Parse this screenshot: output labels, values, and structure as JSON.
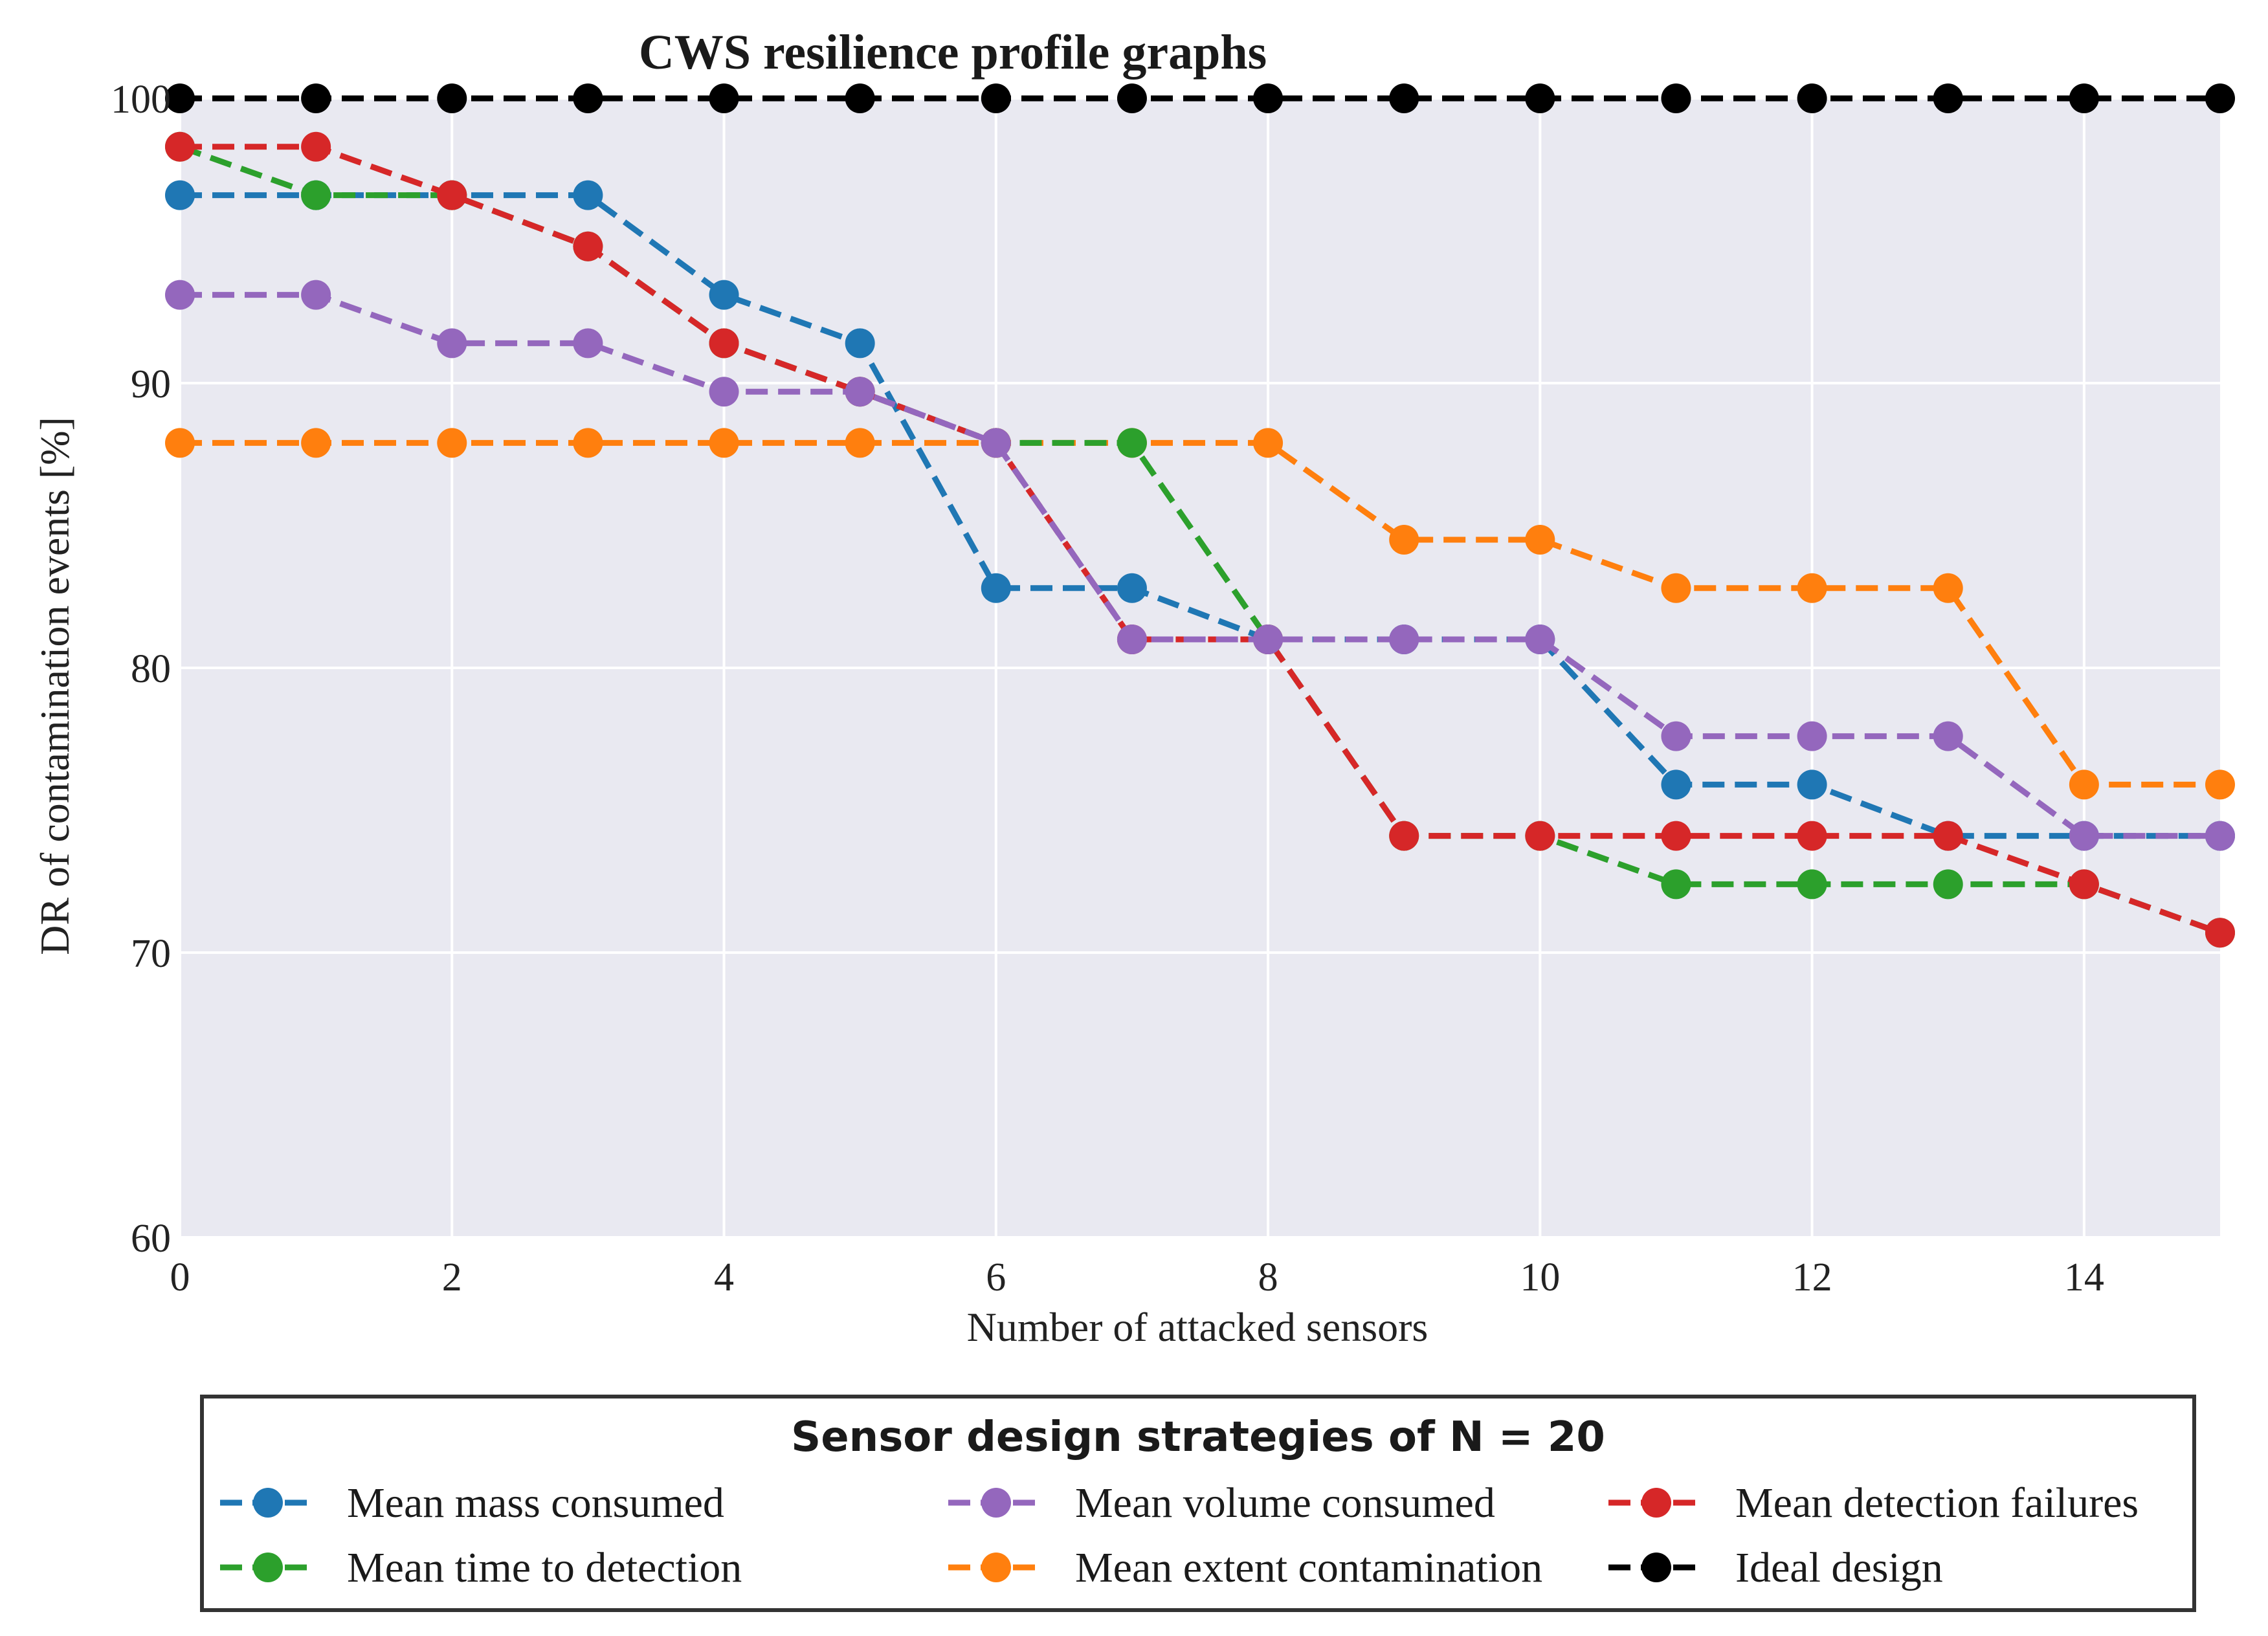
{
  "chart_data": {
    "type": "line",
    "title": "CWS resilience profile graphs",
    "xlabel": "Number of attacked sensors",
    "ylabel": "DR of contamination events [%]",
    "xlim": [
      0,
      15
    ],
    "ylim": [
      60,
      100
    ],
    "xticks": [
      0,
      2,
      4,
      6,
      8,
      10,
      12,
      14
    ],
    "yticks": [
      60,
      70,
      80,
      90,
      100
    ],
    "grid": true,
    "legend_title": "Sensor design strategies of N = 20",
    "legend_position": "bottom",
    "x": [
      0,
      1,
      2,
      3,
      4,
      5,
      6,
      7,
      8,
      9,
      10,
      11,
      12,
      13,
      14,
      15
    ],
    "series": [
      {
        "name": "Mean mass consumed",
        "color": "#1f77b4",
        "values": [
          96.6,
          96.6,
          96.6,
          96.6,
          93.1,
          91.4,
          82.8,
          82.8,
          81.0,
          81.0,
          81.0,
          75.9,
          75.9,
          74.1,
          74.1,
          74.1
        ]
      },
      {
        "name": "Mean extent contamination",
        "color": "#ff7f0e",
        "values": [
          87.9,
          87.9,
          87.9,
          87.9,
          87.9,
          87.9,
          87.9,
          87.9,
          87.9,
          84.5,
          84.5,
          82.8,
          82.8,
          82.8,
          75.9,
          75.9
        ]
      },
      {
        "name": "Mean time to detection",
        "color": "#2ca02c",
        "values": [
          98.3,
          96.6,
          96.6,
          94.8,
          91.4,
          89.7,
          87.9,
          87.9,
          81.0,
          74.1,
          74.1,
          72.4,
          72.4,
          72.4,
          72.4,
          70.7
        ]
      },
      {
        "name": "Mean detection failures",
        "color": "#d62728",
        "values": [
          98.3,
          98.3,
          96.6,
          94.8,
          91.4,
          89.7,
          87.9,
          81.0,
          81.0,
          74.1,
          74.1,
          74.1,
          74.1,
          74.1,
          72.4,
          70.7
        ]
      },
      {
        "name": "Mean volume consumed",
        "color": "#9467bd",
        "values": [
          93.1,
          93.1,
          91.4,
          91.4,
          89.7,
          89.7,
          87.9,
          81.0,
          81.0,
          81.0,
          81.0,
          77.6,
          77.6,
          77.6,
          74.1,
          74.1
        ]
      },
      {
        "name": "Ideal design",
        "color": "#000000",
        "values": [
          100,
          100,
          100,
          100,
          100,
          100,
          100,
          100,
          100,
          100,
          100,
          100,
          100,
          100,
          100,
          100
        ]
      }
    ],
    "legend_order": [
      0,
      2,
      4,
      1,
      3,
      5
    ]
  }
}
